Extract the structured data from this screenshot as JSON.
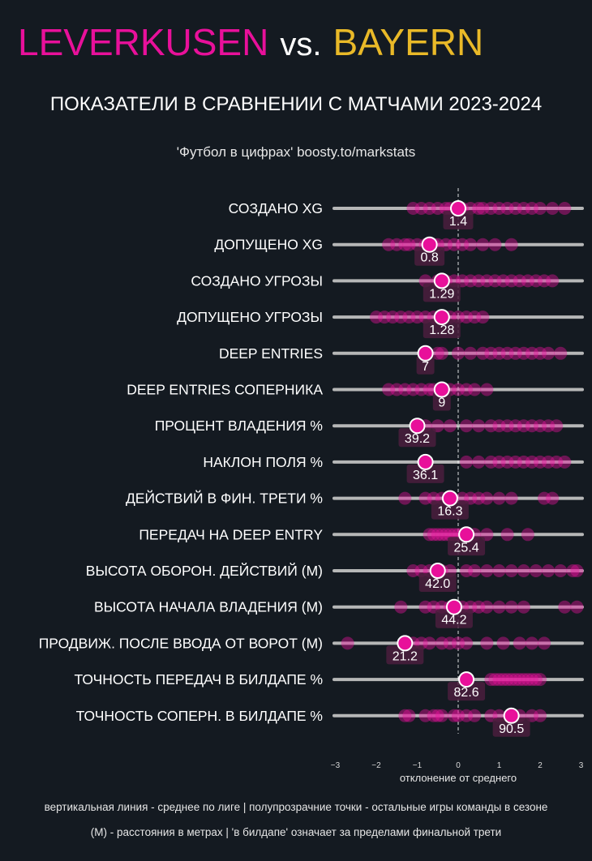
{
  "header": {
    "team_home": "LEVERKUSEN",
    "vs": "vs.",
    "team_away": "BAYERN",
    "subtitle": "ПОКАЗАТЕЛИ В СРАВНЕНИИ С МАТЧАМИ 2023-2024",
    "credit": "'Футбол в цифрах' boosty.to/markstats"
  },
  "colors": {
    "home": "#e8109a",
    "away": "#e9b928",
    "background": "#141a21",
    "track": "#c8c8c8"
  },
  "chart_data": {
    "type": "scatter",
    "xlabel": "отклонение от среднего",
    "xlim": [
      -3,
      3
    ],
    "xticks": [
      "−3",
      "−2",
      "−1",
      "0",
      "1",
      "2",
      "3"
    ],
    "reference_line": "вертикальная пунктирная линия в 0",
    "categories": [
      "СОЗДАНО XG",
      "ДОПУЩЕНО XG",
      "СОЗДАНО УГРОЗЫ",
      "ДОПУЩЕНО УГРОЗЫ",
      "DEEP ENTRIES",
      "DEEP ENTRIES СОПЕРНИКА",
      "ПРОЦЕНТ ВЛАДЕНИЯ %",
      "НАКЛОН ПОЛЯ %",
      "ДЕЙСТВИЙ В ФИН. ТРЕТИ %",
      "ПЕРЕДАЧ НА DEEP ENTRY",
      "ВЫСОТА ОБОРОН. ДЕЙСТВИЙ (М)",
      "ВЫСОТА НАЧАЛА ВЛАДЕНИЯ (М)",
      "ПРОДВИЖ. ПОСЛЕ ВВОДА ОТ ВОРОТ (М)",
      "ТОЧНОСТЬ ПЕРЕДАЧ В БИЛДАПЕ %",
      "ТОЧНОСТЬ СОПЕРН. В БИЛДАПЕ %"
    ],
    "highlight": {
      "x": [
        0.0,
        -0.7,
        -0.4,
        -0.4,
        -0.8,
        -0.4,
        -1.0,
        -0.8,
        -0.2,
        0.2,
        -0.5,
        -0.1,
        -1.3,
        0.2,
        1.3
      ],
      "labels": [
        "1.4",
        "0.8",
        "1.29",
        "1.28",
        "7",
        "9",
        "39.2",
        "36.1",
        "16.3",
        "25.4",
        "42.0",
        "44.2",
        "21.2",
        "82.6",
        "90.5"
      ]
    },
    "season_matches": [
      [
        -1.1,
        -0.9,
        -0.7,
        -0.5,
        -0.3,
        -0.2,
        0.1,
        0.3,
        0.5,
        0.6,
        0.8,
        1.0,
        1.2,
        1.4,
        1.6,
        1.8,
        2.0,
        2.3,
        2.6
      ],
      [
        -1.7,
        -1.5,
        -1.3,
        -1.2,
        -1.0,
        -0.8,
        -0.6,
        -0.5,
        -0.3,
        -0.1,
        0.1,
        0.3,
        0.6,
        0.9,
        1.3
      ],
      [
        -0.8,
        -0.5,
        -0.3,
        -0.1,
        0.1,
        0.3,
        0.5,
        0.7,
        0.9,
        1.1,
        1.3,
        1.5,
        1.7,
        1.9,
        2.1,
        2.3
      ],
      [
        -2.0,
        -1.8,
        -1.6,
        -1.4,
        -1.2,
        -1.0,
        -0.8,
        -0.6,
        -0.4,
        -0.2,
        0.0,
        0.2,
        0.4,
        0.6
      ],
      [
        -0.5,
        -0.4,
        0.0,
        0.3,
        0.6,
        0.8,
        1.0,
        1.2,
        1.4,
        1.6,
        1.8,
        2.0,
        2.2,
        2.5
      ],
      [
        -1.7,
        -1.5,
        -1.3,
        -1.1,
        -0.9,
        -0.7,
        -0.6,
        -0.4,
        -0.2,
        0.0,
        0.2,
        0.4,
        0.7
      ],
      [
        -0.8,
        -0.5,
        -0.2,
        0.2,
        0.5,
        0.8,
        1.0,
        1.2,
        1.4,
        1.6,
        1.8,
        2.0,
        2.2,
        2.4
      ],
      [
        0.2,
        0.5,
        0.8,
        1.0,
        1.2,
        1.4,
        1.6,
        1.8,
        2.0,
        2.2,
        2.4,
        2.6
      ],
      [
        -1.3,
        -0.8,
        -0.6,
        -0.4,
        0.1,
        0.3,
        0.5,
        0.7,
        1.0,
        1.3,
        2.1,
        2.3
      ],
      [
        -0.7,
        -0.6,
        -0.5,
        -0.4,
        -0.3,
        -0.2,
        -0.1,
        0.0,
        0.1,
        0.4,
        0.7,
        1.2,
        1.7
      ],
      [
        -1.1,
        -0.9,
        -0.7,
        -0.4,
        -0.2,
        0.2,
        0.4,
        0.7,
        1.0,
        1.3,
        1.6,
        1.9,
        2.2,
        2.5,
        2.8,
        2.9
      ],
      [
        -1.4,
        -0.8,
        -0.6,
        -0.4,
        -0.2,
        0.1,
        0.3,
        0.5,
        0.7,
        1.0,
        1.3,
        1.6,
        2.6,
        2.9
      ],
      [
        -2.7,
        -1.1,
        -0.9,
        -0.7,
        -0.4,
        -0.2,
        0.0,
        0.2,
        0.7,
        1.1,
        1.5,
        1.8,
        2.1
      ],
      [
        0.8,
        0.9,
        1.0,
        1.1,
        1.2,
        1.3,
        1.4,
        1.5,
        1.6,
        1.7,
        1.8,
        1.9,
        2.0
      ],
      [
        -1.3,
        -1.2,
        -0.8,
        -0.6,
        -0.5,
        -0.4,
        -0.1,
        0.0,
        0.2,
        0.4,
        0.8,
        1.0,
        1.5,
        1.8,
        2.0
      ]
    ]
  },
  "footer": {
    "line1": "вертикальная линия - среднее по лиге  |  полупрозрачние точки - остальные игры команды в сезоне",
    "line2": "(М) - расстояния в метрах | 'в билдапе' означает за пределами финальной трети"
  }
}
